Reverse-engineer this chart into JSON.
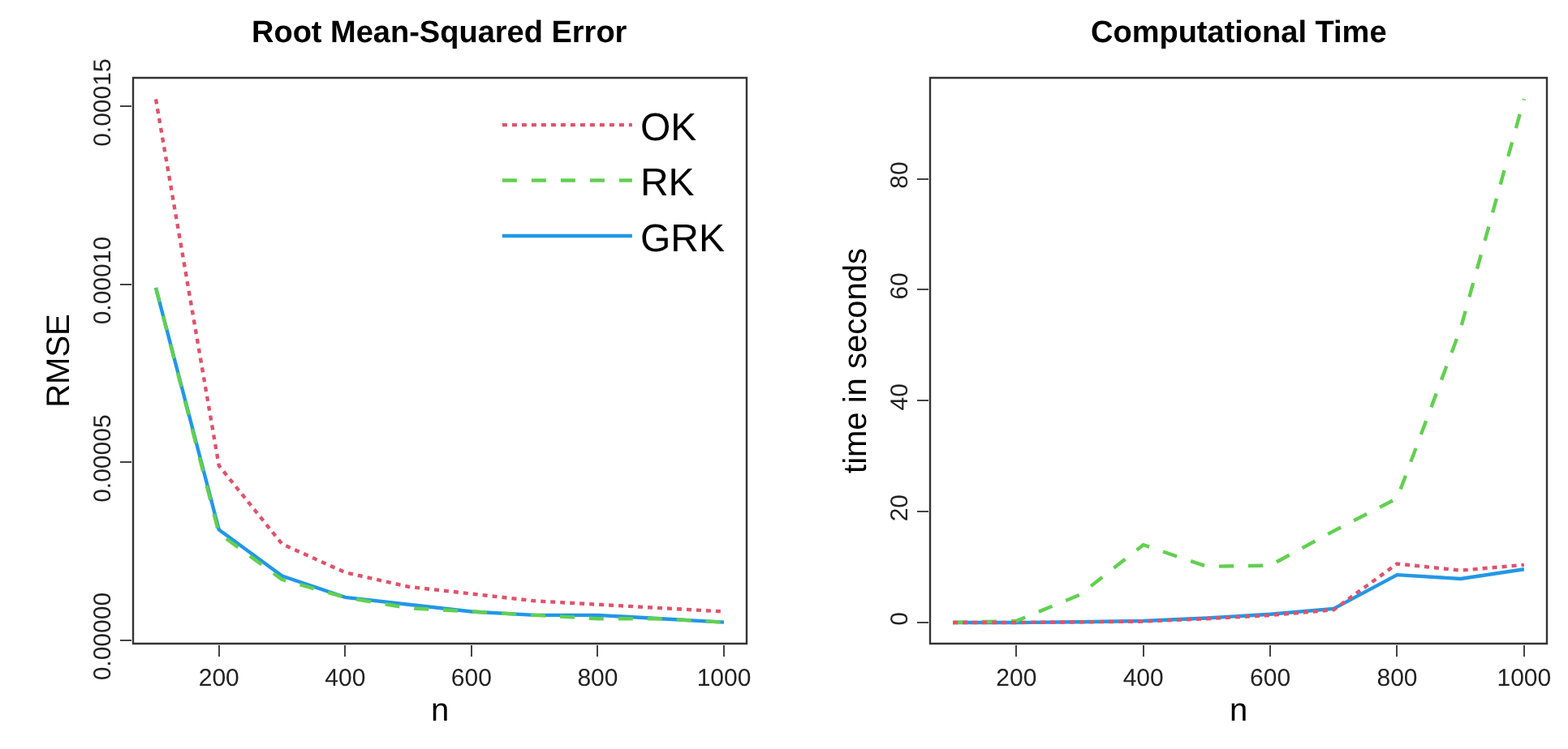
{
  "chart_data": [
    {
      "type": "line",
      "title": "Root Mean-Squared Error",
      "xlabel": "n",
      "ylabel": "RMSE",
      "x": [
        100,
        200,
        300,
        400,
        500,
        600,
        700,
        800,
        900,
        1000
      ],
      "series": [
        {
          "name": "OK",
          "color": "#df536b",
          "line_style": "dotted",
          "values": [
            0.000152,
            4.9e-05,
            2.7e-05,
            1.9e-05,
            1.5e-05,
            1.3e-05,
            1.1e-05,
            1e-05,
            9e-06,
            8e-06
          ]
        },
        {
          "name": "RK",
          "color": "#61d04f",
          "line_style": "dashed",
          "values": [
            9.9e-05,
            3e-05,
            1.7e-05,
            1.2e-05,
            9e-06,
            8e-06,
            7e-06,
            6e-06,
            6e-06,
            5e-06
          ]
        },
        {
          "name": "GRK",
          "color": "#2297e6",
          "line_style": "solid",
          "values": [
            9.9e-05,
            3.1e-05,
            1.8e-05,
            1.2e-05,
            1e-05,
            8e-06,
            7e-06,
            7e-06,
            6e-06,
            5e-06
          ]
        }
      ],
      "xlim": [
        64,
        1036
      ],
      "ylim": [
        -1e-06,
        0.000158
      ],
      "xticks": [
        200,
        400,
        600,
        800,
        1000
      ],
      "yticks": [
        {
          "value": 0,
          "label": "0.00000"
        },
        {
          "value": 5e-05,
          "label": "0.00005"
        },
        {
          "value": 0.0001,
          "label": "0.00010"
        },
        {
          "value": 0.00015,
          "label": "0.00015"
        }
      ],
      "legend": "top right",
      "marker": "none"
    },
    {
      "type": "line",
      "title": "Computational Time",
      "xlabel": "n",
      "ylabel": "time in seconds",
      "x": [
        100,
        200,
        300,
        400,
        500,
        600,
        700,
        800,
        900,
        1000
      ],
      "series": [
        {
          "color": "#df536b",
          "line_style": "dotted",
          "values": [
            0,
            0,
            0.1,
            0.2,
            0.7,
            1.3,
            2.3,
            10.6,
            9.4,
            10.4
          ]
        },
        {
          "color": "#61d04f",
          "line_style": "dashed",
          "values": [
            0,
            0.3,
            5,
            14,
            10.1,
            10.3,
            16.5,
            22.4,
            53,
            94.4
          ]
        },
        {
          "color": "#2297e6",
          "line_style": "solid",
          "values": [
            0,
            0,
            0.1,
            0.3,
            0.8,
            1.5,
            2.5,
            8.6,
            7.9,
            9.6
          ]
        }
      ],
      "xlim": [
        64,
        1036
      ],
      "ylim": [
        -3.8,
        98.2
      ],
      "xticks": [
        200,
        400,
        600,
        800,
        1000
      ],
      "yticks": [
        0,
        20,
        40,
        60,
        80
      ],
      "legend": false,
      "marker": "none"
    }
  ]
}
